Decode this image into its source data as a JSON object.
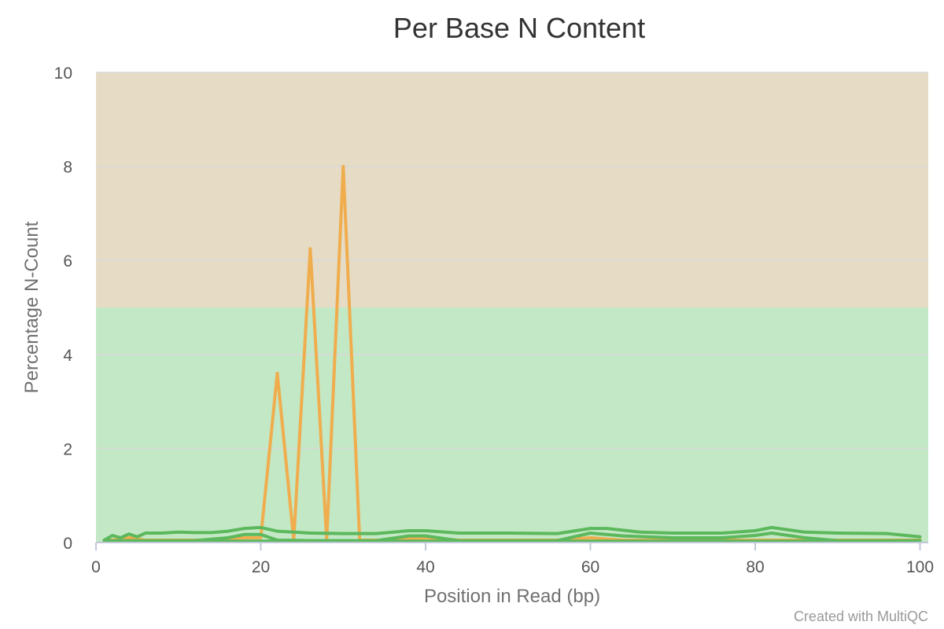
{
  "chart_data": {
    "type": "line",
    "title": "Per Base N Content",
    "xlabel": "Position in Read (bp)",
    "ylabel": "Percentage N-Count",
    "xlim": [
      0,
      101
    ],
    "ylim": [
      0,
      10
    ],
    "xticks": [
      0,
      20,
      40,
      60,
      80,
      100
    ],
    "yticks": [
      0,
      2,
      4,
      6,
      8,
      10
    ],
    "grid": true,
    "background_bands": [
      {
        "from": 0,
        "to": 5,
        "color": "#c3e8c5"
      },
      {
        "from": 5,
        "to": 10,
        "color": "#e6dcc6"
      }
    ],
    "series": [
      {
        "color": "#f0ad4e",
        "x": [
          1,
          2,
          4,
          6,
          10,
          14,
          18,
          20,
          22,
          24,
          26,
          28,
          30,
          32,
          36,
          40,
          44,
          50,
          56,
          60,
          64,
          70,
          80,
          90,
          100
        ],
        "y": [
          0.05,
          0.05,
          0.1,
          0.05,
          0.05,
          0.05,
          0.1,
          0.1,
          3.6,
          0.05,
          6.25,
          0.05,
          8.0,
          0.05,
          0.05,
          0.1,
          0.05,
          0.05,
          0.05,
          0.1,
          0.05,
          0.05,
          0.05,
          0.05,
          0.05
        ]
      },
      {
        "color": "#5cb85c",
        "x": [
          1,
          2,
          3,
          4,
          5,
          6,
          8,
          10,
          12,
          14,
          16,
          18,
          20,
          22,
          26,
          30,
          34,
          38,
          40,
          44,
          50,
          56,
          60,
          62,
          66,
          70,
          76,
          80,
          82,
          86,
          90,
          96,
          100
        ],
        "y": [
          0.05,
          0.15,
          0.1,
          0.18,
          0.12,
          0.2,
          0.2,
          0.22,
          0.21,
          0.21,
          0.24,
          0.3,
          0.32,
          0.24,
          0.2,
          0.19,
          0.19,
          0.25,
          0.25,
          0.2,
          0.2,
          0.19,
          0.3,
          0.3,
          0.22,
          0.2,
          0.2,
          0.25,
          0.32,
          0.22,
          0.2,
          0.19,
          0.12
        ]
      },
      {
        "color": "#5cb85c",
        "x": [
          1,
          4,
          8,
          12,
          16,
          18,
          20,
          22,
          26,
          30,
          34,
          38,
          40,
          44,
          50,
          56,
          60,
          64,
          70,
          76,
          80,
          82,
          86,
          90,
          96,
          100
        ],
        "y": [
          0.04,
          0.04,
          0.04,
          0.04,
          0.1,
          0.17,
          0.17,
          0.05,
          0.04,
          0.04,
          0.04,
          0.14,
          0.14,
          0.04,
          0.04,
          0.04,
          0.2,
          0.14,
          0.1,
          0.1,
          0.15,
          0.2,
          0.1,
          0.04,
          0.04,
          0.04
        ]
      },
      {
        "color": "#5cb85c",
        "x": [
          1,
          10,
          20,
          30,
          40,
          50,
          60,
          70,
          80,
          90,
          100
        ],
        "y": [
          0.03,
          0.03,
          0.03,
          0.03,
          0.03,
          0.03,
          0.03,
          0.03,
          0.03,
          0.03,
          0.03
        ]
      }
    ]
  },
  "credit": "Created with MultiQC"
}
